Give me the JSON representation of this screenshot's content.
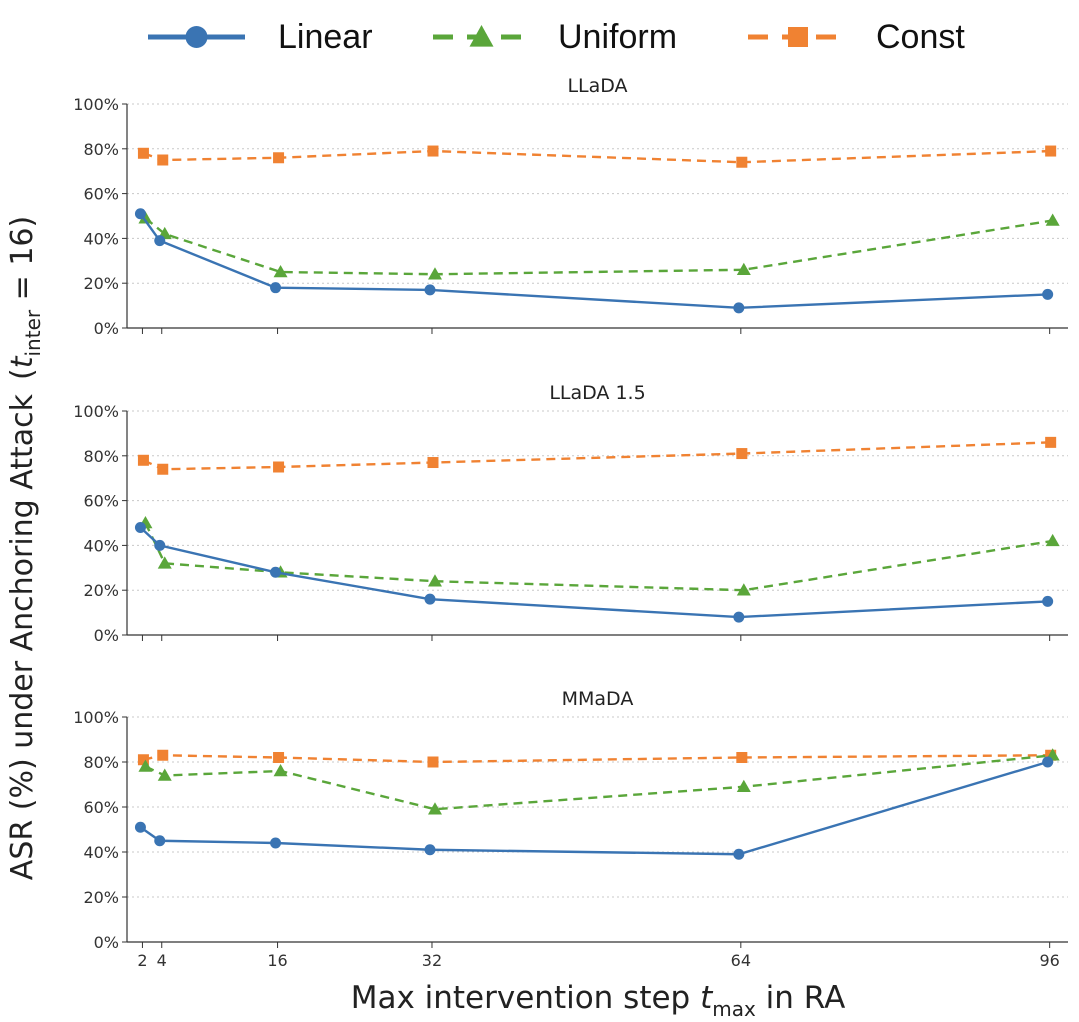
{
  "chart_data": {
    "type": "line",
    "x": [
      2,
      4,
      16,
      32,
      64,
      96
    ],
    "x_ticks": [
      "2",
      "4",
      "16",
      "32",
      "64",
      "96"
    ],
    "y_ticks": [
      "0%",
      "20%",
      "40%",
      "60%",
      "80%",
      "100%"
    ],
    "ylim": [
      0,
      100
    ],
    "xlabel_prefix": "Max intervention step ",
    "xlabel_var": "t",
    "xlabel_sub": "max",
    "xlabel_suffix": " in RA",
    "ylabel_main": "ASR (%) under Anchoring Attack",
    "ylabel_paren_open": "(",
    "ylabel_var": "t",
    "ylabel_sub": "inter",
    "ylabel_eq": " = 16)",
    "grid": "horizontal dotted",
    "legend": {
      "position": "top",
      "items": [
        {
          "name": "Linear",
          "color": "#3a74b3",
          "marker": "circle",
          "style": "solid"
        },
        {
          "name": "Uniform",
          "color": "#5aa63a",
          "marker": "triangle",
          "style": "dashed"
        },
        {
          "name": "Const",
          "color": "#f08232",
          "marker": "square",
          "style": "dashed"
        }
      ]
    },
    "panels": [
      {
        "title": "LLaDA",
        "series": [
          {
            "name": "Linear",
            "values": [
              51,
              39,
              18,
              17,
              9,
              15
            ]
          },
          {
            "name": "Uniform",
            "values": [
              49,
              42,
              25,
              24,
              26,
              48
            ]
          },
          {
            "name": "Const",
            "values": [
              78,
              75,
              76,
              79,
              74,
              79
            ]
          }
        ]
      },
      {
        "title": "LLaDA 1.5",
        "series": [
          {
            "name": "Linear",
            "values": [
              48,
              40,
              28,
              16,
              8,
              15
            ]
          },
          {
            "name": "Uniform",
            "values": [
              50,
              32,
              28,
              24,
              20,
              42
            ]
          },
          {
            "name": "Const",
            "values": [
              78,
              74,
              75,
              77,
              81,
              86
            ]
          }
        ]
      },
      {
        "title": "MMaDA",
        "series": [
          {
            "name": "Linear",
            "values": [
              51,
              45,
              44,
              41,
              39,
              80
            ]
          },
          {
            "name": "Uniform",
            "values": [
              78,
              74,
              76,
              59,
              69,
              83
            ]
          },
          {
            "name": "Const",
            "values": [
              81,
              83,
              82,
              80,
              82,
              83
            ]
          }
        ]
      }
    ]
  }
}
